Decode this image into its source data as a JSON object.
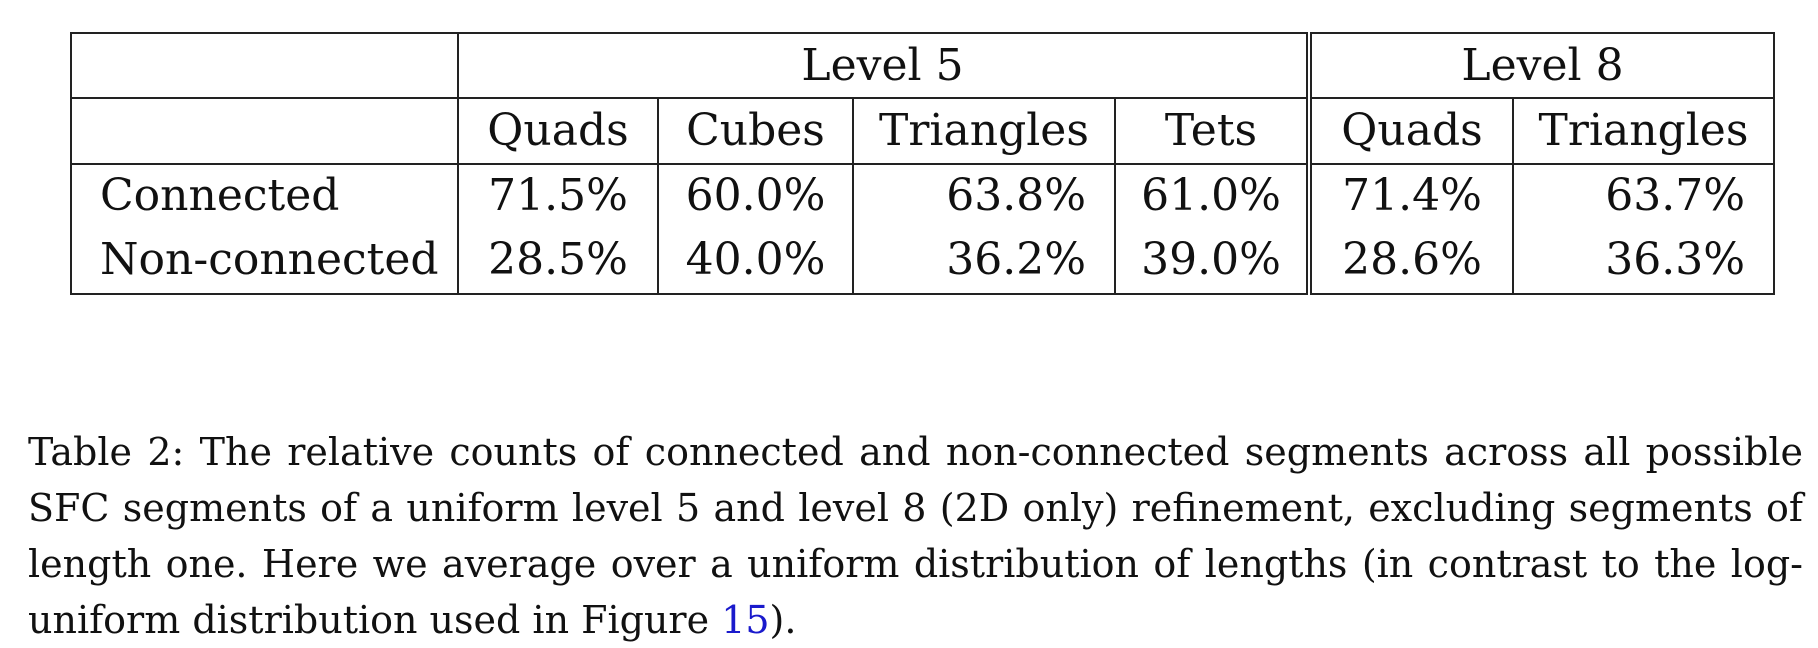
{
  "table": {
    "groups": [
      {
        "label": "Level 5"
      },
      {
        "label": "Level 8"
      }
    ],
    "columns": [
      "Quads",
      "Cubes",
      "Triangles",
      "Tets",
      "Quads",
      "Triangles"
    ],
    "rows": [
      {
        "label": "Connected",
        "values": [
          "71.5%",
          "60.0%",
          "63.8%",
          "61.0%",
          "71.4%",
          "63.7%"
        ]
      },
      {
        "label": "Non-connected",
        "values": [
          "28.5%",
          "40.0%",
          "36.2%",
          "39.0%",
          "28.6%",
          "36.3%"
        ]
      }
    ]
  },
  "caption": {
    "label": "Table 2:",
    "text_before_link": "The relative counts of connected and non-connected segments across all possible SFC segments of a uniform level 5 and level 8 (2D only) refinement, excluding segments of length one. Here we average over a uniform distribution of lengths (in contrast to the log-uniform distribution used in Figure",
    "link_text": "15",
    "text_after_link": ")."
  },
  "colors": {
    "text": "#111111",
    "link": "#1a1acc",
    "rule": "#222222"
  }
}
